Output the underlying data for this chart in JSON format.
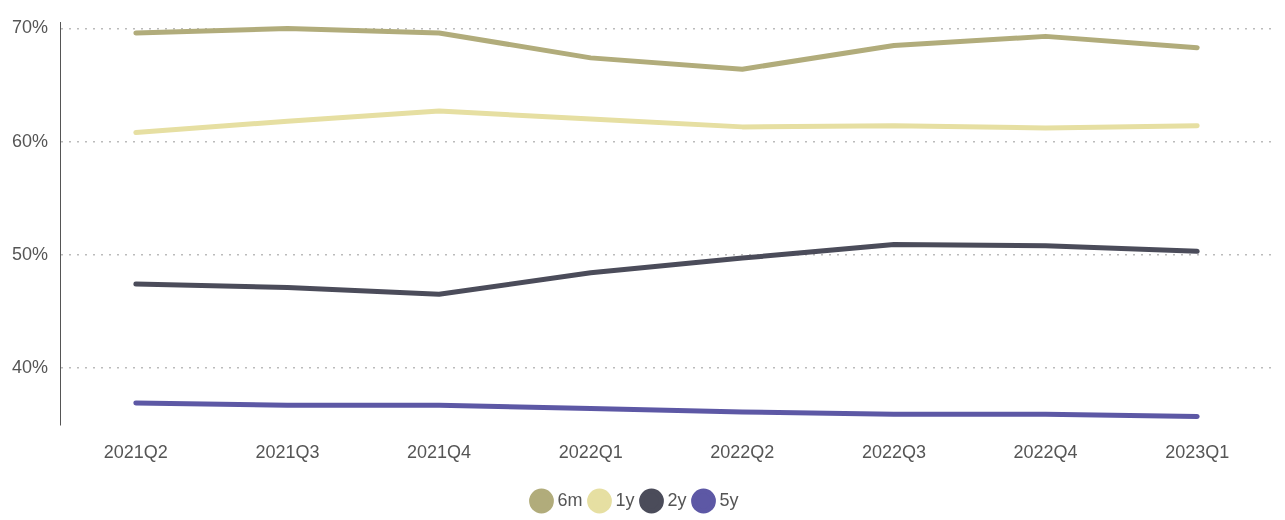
{
  "chart_data": {
    "type": "line",
    "categories": [
      "2021Q2",
      "2021Q3",
      "2021Q4",
      "2022Q1",
      "2022Q2",
      "2022Q3",
      "2022Q4",
      "2023Q1"
    ],
    "series": [
      {
        "name": "6m",
        "color": "#b1ac7b",
        "values": [
          69.6,
          70.0,
          69.6,
          67.4,
          66.4,
          68.5,
          69.3,
          68.3
        ]
      },
      {
        "name": "1y",
        "color": "#e6dfa2",
        "values": [
          60.8,
          61.8,
          62.7,
          62.0,
          61.3,
          61.4,
          61.2,
          61.4
        ]
      },
      {
        "name": "2y",
        "color": "#4b4c5a",
        "values": [
          47.4,
          47.1,
          46.5,
          48.4,
          49.7,
          50.9,
          50.8,
          50.3
        ]
      },
      {
        "name": "5y",
        "color": "#5d58a5",
        "values": [
          36.9,
          36.7,
          36.7,
          36.4,
          36.1,
          35.9,
          35.9,
          35.7
        ]
      }
    ],
    "ylim": [
      35,
      70.5
    ],
    "yticks": [
      {
        "value": 40,
        "label": "40%"
      },
      {
        "value": 50,
        "label": "50%"
      },
      {
        "value": 60,
        "label": "60%"
      },
      {
        "value": 70,
        "label": "70%"
      }
    ],
    "grid": "y",
    "legend": "bottom",
    "marker": "none",
    "line_style": "solid"
  }
}
